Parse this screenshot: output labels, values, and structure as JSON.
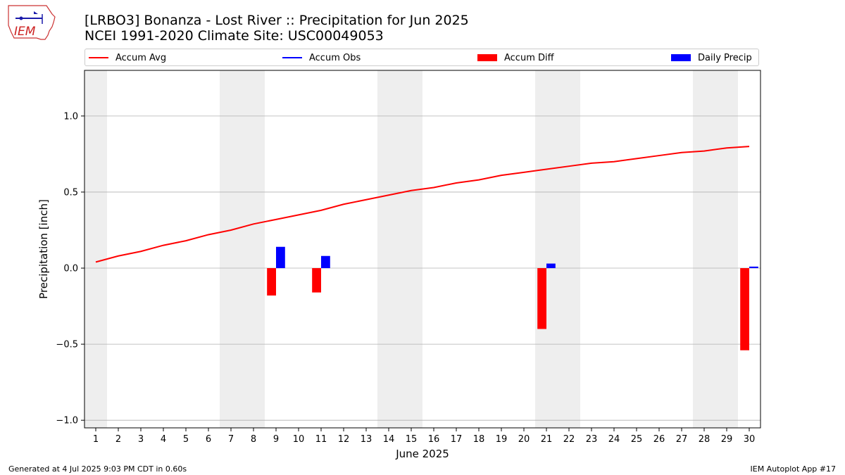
{
  "header": {
    "title_line1": "[LRBO3] Bonanza - Lost River :: Precipitation for Jun 2025",
    "title_line2": "NCEI 1991-2020 Climate Site: USC00049053",
    "logo_text": "IEM"
  },
  "footer": {
    "left": "Generated at 4 Jul 2025 9:03 PM CDT in 0.60s",
    "right": "IEM Autoplot App #17"
  },
  "colors": {
    "accum_avg": "#ff0000",
    "accum_obs": "#0000ff",
    "accum_diff": "#ff0000",
    "daily_precip": "#0000ff",
    "weekend_shade": "#eeeeee",
    "grid": "#b0b0b0"
  },
  "chart_data": {
    "type": "bar",
    "xlabel": "June 2025",
    "ylabel": "Precipitation [inch]",
    "xlim": [
      0.5,
      30.5
    ],
    "ylim": [
      -1.05,
      1.3
    ],
    "yticks": [
      -1.0,
      -0.5,
      0.0,
      0.5,
      1.0
    ],
    "ytick_labels": [
      "−1.0",
      "−0.5",
      "0.0",
      "0.5",
      "1.0"
    ],
    "grid": "horizontal",
    "legend_placement": "top, above plot",
    "legend": [
      "Accum Avg",
      "Accum Obs",
      "Accum Diff",
      "Daily Precip"
    ],
    "days": [
      1,
      2,
      3,
      4,
      5,
      6,
      7,
      8,
      9,
      10,
      11,
      12,
      13,
      14,
      15,
      16,
      17,
      18,
      19,
      20,
      21,
      22,
      23,
      24,
      25,
      26,
      27,
      28,
      29,
      30
    ],
    "weekend_days": [
      1,
      7,
      8,
      14,
      15,
      21,
      22,
      28,
      29
    ],
    "series": [
      {
        "name": "Accum Avg",
        "kind": "line",
        "values": [
          0.04,
          0.08,
          0.11,
          0.15,
          0.18,
          0.22,
          0.25,
          0.29,
          0.32,
          0.35,
          0.38,
          0.42,
          0.45,
          0.48,
          0.51,
          0.53,
          0.56,
          0.58,
          0.61,
          0.63,
          0.65,
          0.67,
          0.69,
          0.7,
          0.72,
          0.74,
          0.76,
          0.77,
          0.79,
          0.8
        ]
      },
      {
        "name": "Accum Obs",
        "kind": "line",
        "values": []
      },
      {
        "name": "Accum Diff",
        "kind": "bar",
        "points": [
          {
            "day": 9,
            "value": -0.18
          },
          {
            "day": 11,
            "value": -0.16
          },
          {
            "day": 21,
            "value": -0.4
          },
          {
            "day": 30,
            "value": -0.54
          }
        ]
      },
      {
        "name": "Daily Precip",
        "kind": "bar",
        "points": [
          {
            "day": 9,
            "value": 0.14
          },
          {
            "day": 11,
            "value": 0.08
          },
          {
            "day": 21,
            "value": 0.03
          },
          {
            "day": 30,
            "value": 0.01
          }
        ]
      }
    ]
  }
}
